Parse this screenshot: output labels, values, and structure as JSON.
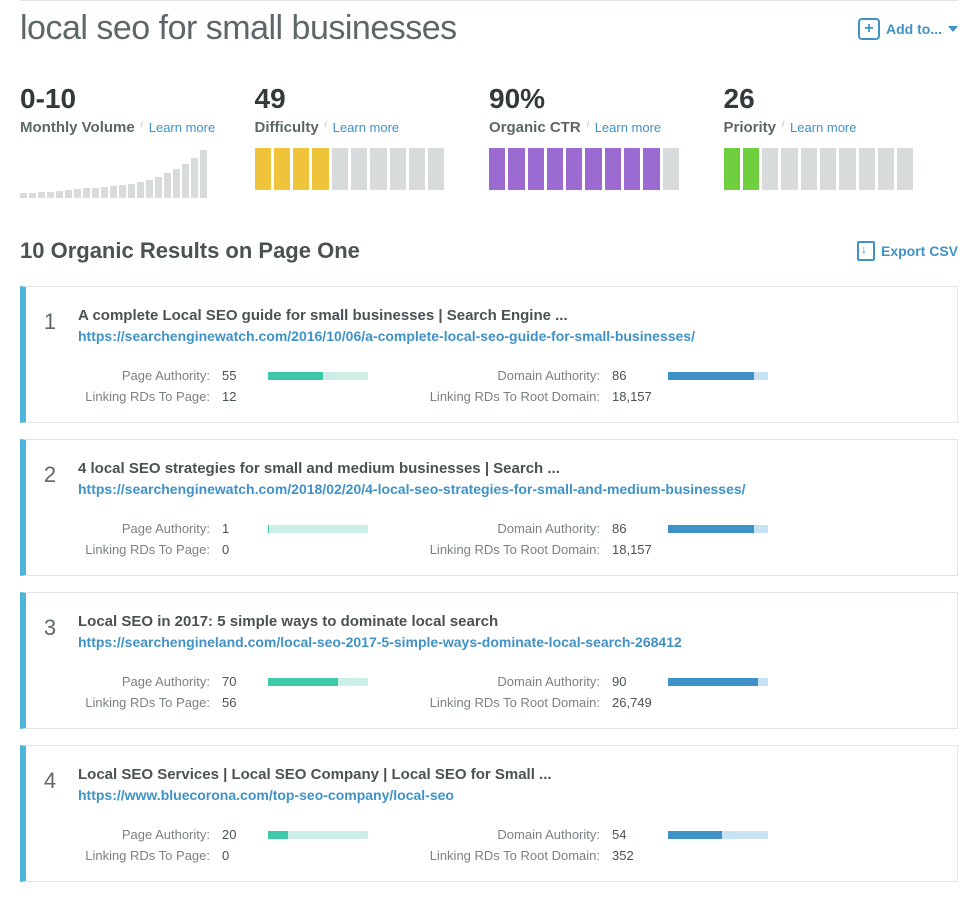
{
  "header": {
    "title": "local seo for small businesses",
    "add_to_label": "Add to..."
  },
  "metrics": {
    "volume": {
      "value": "0-10",
      "label": "Monthly Volume",
      "learn_more": "Learn more",
      "skyline_heights": [
        5,
        5,
        6,
        6,
        7,
        8,
        9,
        10,
        10,
        11,
        12,
        13,
        14,
        16,
        18,
        21,
        25,
        29,
        34,
        40,
        48
      ],
      "bar_color": "#d7dbdc"
    },
    "difficulty": {
      "value": "49",
      "label": "Difficulty",
      "learn_more": "Learn more",
      "filled": 4,
      "total": 10,
      "fill_color": "#f0c43a",
      "empty_color": "#d7dbdc"
    },
    "ctr": {
      "value": "90%",
      "label": "Organic CTR",
      "learn_more": "Learn more",
      "filled": 9,
      "total": 10,
      "fill_color": "#9b6bd1",
      "empty_color": "#d7dbdc"
    },
    "priority": {
      "value": "26",
      "label": "Priority",
      "learn_more": "Learn more",
      "filled": 2,
      "total": 10,
      "fill_color": "#6fcf3f",
      "empty_color": "#d7dbdc"
    }
  },
  "results_section": {
    "title": "10 Organic Results on Page One",
    "export_label": "Export CSV",
    "labels": {
      "pa": "Page Authority:",
      "lrd_page": "Linking RDs To Page:",
      "da": "Domain Authority:",
      "lrd_root": "Linking RDs To Root Domain:"
    },
    "pa_bar": {
      "fill_color": "#3fc9a9",
      "rest_color": "#cdeee6"
    },
    "da_bar": {
      "fill_color": "#3f92c8",
      "rest_color": "#c7e2f2"
    },
    "results": [
      {
        "rank": "1",
        "title": "A complete Local SEO guide for small businesses | Search Engine ...",
        "url": "https://searchenginewatch.com/2016/10/06/a-complete-local-seo-guide-for-small-businesses/",
        "pa": "55",
        "lrd_page": "12",
        "da": "86",
        "lrd_root": "18,157"
      },
      {
        "rank": "2",
        "title": "4 local SEO strategies for small and medium businesses | Search ...",
        "url": "https://searchenginewatch.com/2018/02/20/4-local-seo-strategies-for-small-and-medium-businesses/",
        "pa": "1",
        "lrd_page": "0",
        "da": "86",
        "lrd_root": "18,157"
      },
      {
        "rank": "3",
        "title": "Local SEO in 2017: 5 simple ways to dominate local search",
        "url": "https://searchengineland.com/local-seo-2017-5-simple-ways-dominate-local-search-268412",
        "pa": "70",
        "lrd_page": "56",
        "da": "90",
        "lrd_root": "26,749"
      },
      {
        "rank": "4",
        "title": "Local SEO Services | Local SEO Company | Local SEO for Small ...",
        "url": "https://www.bluecorona.com/top-seo-company/local-seo",
        "pa": "20",
        "lrd_page": "0",
        "da": "54",
        "lrd_root": "352"
      }
    ]
  }
}
